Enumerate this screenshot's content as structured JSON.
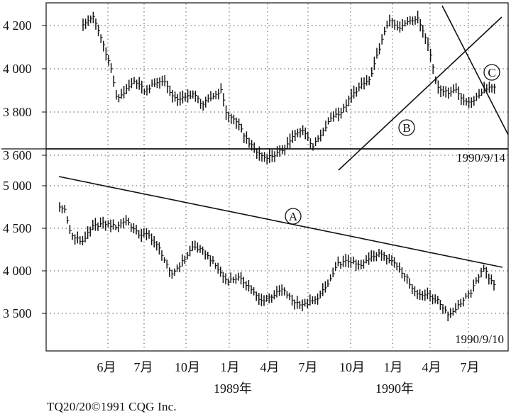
{
  "chart_data": [
    {
      "type": "candlestick",
      "panel": "top",
      "stamp": "1990/9/14",
      "y_ticks": [
        4200,
        4000,
        3800,
        3600
      ],
      "y_tick_labels": [
        "4 200",
        "4 000",
        "3 800",
        "3 600"
      ],
      "ylim": [
        3540,
        4310
      ],
      "annotations": [
        "B",
        "C"
      ],
      "anchors": [
        [
          0,
          4200
        ],
        [
          4,
          4245
        ],
        [
          8,
          4130
        ],
        [
          12,
          3990
        ],
        [
          14,
          3860
        ],
        [
          18,
          3900
        ],
        [
          22,
          3945
        ],
        [
          26,
          3895
        ],
        [
          30,
          3935
        ],
        [
          34,
          3945
        ],
        [
          38,
          3860
        ],
        [
          42,
          3865
        ],
        [
          46,
          3885
        ],
        [
          50,
          3835
        ],
        [
          54,
          3870
        ],
        [
          58,
          3900
        ],
        [
          60,
          3790
        ],
        [
          64,
          3760
        ],
        [
          68,
          3680
        ],
        [
          72,
          3620
        ],
        [
          76,
          3590
        ],
        [
          80,
          3600
        ],
        [
          84,
          3630
        ],
        [
          88,
          3690
        ],
        [
          92,
          3720
        ],
        [
          96,
          3640
        ],
        [
          100,
          3700
        ],
        [
          104,
          3780
        ],
        [
          108,
          3800
        ],
        [
          112,
          3870
        ],
        [
          116,
          3920
        ],
        [
          120,
          3950
        ],
        [
          124,
          4100
        ],
        [
          128,
          4230
        ],
        [
          132,
          4180
        ],
        [
          136,
          4225
        ],
        [
          140,
          4230
        ],
        [
          144,
          4130
        ],
        [
          148,
          3920
        ],
        [
          152,
          3890
        ],
        [
          156,
          3905
        ],
        [
          160,
          3840
        ],
        [
          164,
          3860
        ],
        [
          168,
          3910
        ],
        [
          172,
          3920
        ]
      ]
    },
    {
      "type": "candlestick",
      "panel": "bottom",
      "stamp": "1990/9/10",
      "y_ticks": [
        5000,
        4500,
        4000,
        3500
      ],
      "y_tick_labels": [
        "5 000",
        "4 500",
        "4 000",
        "3 500"
      ],
      "ylim": [
        3040,
        5060
      ],
      "x_ticks": [
        "6月",
        "7月",
        "10月",
        "1月",
        "4月",
        "7月",
        "10月",
        "1月",
        "4月",
        "7月"
      ],
      "year_labels": [
        "1989年",
        "1990年"
      ],
      "annotations": [
        "A"
      ],
      "anchors": [
        [
          0,
          4750
        ],
        [
          2,
          4720
        ],
        [
          4,
          4420
        ],
        [
          8,
          4340
        ],
        [
          12,
          4520
        ],
        [
          16,
          4560
        ],
        [
          20,
          4520
        ],
        [
          24,
          4600
        ],
        [
          28,
          4430
        ],
        [
          32,
          4420
        ],
        [
          36,
          4250
        ],
        [
          40,
          3950
        ],
        [
          44,
          4100
        ],
        [
          48,
          4290
        ],
        [
          52,
          4220
        ],
        [
          56,
          4060
        ],
        [
          60,
          3880
        ],
        [
          64,
          3920
        ],
        [
          68,
          3820
        ],
        [
          72,
          3640
        ],
        [
          76,
          3700
        ],
        [
          80,
          3780
        ],
        [
          84,
          3640
        ],
        [
          88,
          3600
        ],
        [
          92,
          3660
        ],
        [
          96,
          3820
        ],
        [
          100,
          4080
        ],
        [
          104,
          4120
        ],
        [
          108,
          4050
        ],
        [
          112,
          4180
        ],
        [
          116,
          4200
        ],
        [
          120,
          4100
        ],
        [
          124,
          3950
        ],
        [
          128,
          3730
        ],
        [
          132,
          3720
        ],
        [
          136,
          3640
        ],
        [
          140,
          3480
        ],
        [
          144,
          3620
        ],
        [
          148,
          3760
        ],
        [
          152,
          4050
        ],
        [
          156,
          3820
        ]
      ]
    }
  ],
  "copyright": "TQ20/20©1991 CQG Inc."
}
